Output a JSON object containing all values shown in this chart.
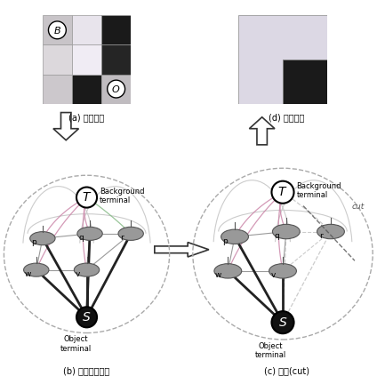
{
  "fig_width": 4.24,
  "fig_height": 4.32,
  "dpi": 100,
  "bg_color": "#ffffff",
  "caption_a": "(a) 原始图像",
  "caption_b": "(b) 构造图割模型",
  "caption_c": "(c) 分割(cut)",
  "caption_d": "(d) 分割结果",
  "bg_terminal": "Background\nterminal",
  "obj_terminal": "Object\nterminal",
  "cut_label": "cut",
  "grid_a": [
    [
      "#c8c4c8",
      "#e8e4ec",
      "#1a1a1a"
    ],
    [
      "#dcd8dc",
      "#f0ecf4",
      "#252525"
    ],
    [
      "#ccc8cc",
      "#1a1a1a",
      "#c0bcc0"
    ]
  ],
  "T_color": "#ffffff",
  "S_color": "#1a1a1a",
  "node_color": "#999999",
  "node_edge": "#555555",
  "tlink_color_b": "#cc88aa",
  "tlink_color_g": "#88bb88",
  "slink_color": "#222222",
  "nlink_color": "#888888",
  "cut_color": "#555555",
  "outer_ell_color": "#aaaaaa"
}
